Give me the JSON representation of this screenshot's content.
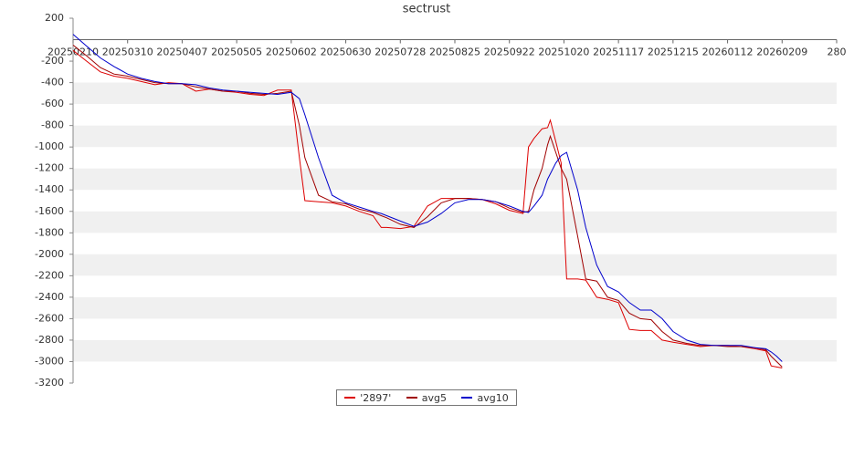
{
  "chart_data": {
    "type": "line",
    "title": "sectrust",
    "x": [
      0,
      5,
      10,
      15,
      20,
      25,
      30,
      35,
      40,
      45,
      50,
      55,
      60,
      65,
      70,
      75,
      80,
      83,
      85,
      90,
      95,
      100,
      105,
      110,
      113,
      115,
      120,
      125,
      130,
      135,
      140,
      145,
      150,
      155,
      160,
      165,
      167,
      169,
      172,
      174,
      175,
      177,
      179,
      181,
      185,
      188,
      192,
      196,
      200,
      204,
      208,
      212,
      216,
      220,
      225,
      230,
      235,
      240,
      245,
      250,
      254,
      256,
      258,
      260
    ],
    "series": [
      {
        "name": "'2897'",
        "color": "#dd0000",
        "values": [
          -100,
          -200,
          -300,
          -340,
          -360,
          -390,
          -420,
          -400,
          -410,
          -480,
          -460,
          -480,
          -490,
          -510,
          -520,
          -470,
          -470,
          -1100,
          -1500,
          -1510,
          -1520,
          -1550,
          -1600,
          -1640,
          -1750,
          -1750,
          -1760,
          -1740,
          -1550,
          -1480,
          -1480,
          -1480,
          -1490,
          -1530,
          -1590,
          -1620,
          -1000,
          -920,
          -830,
          -820,
          -750,
          -950,
          -1150,
          -2230,
          -2230,
          -2240,
          -2400,
          -2420,
          -2450,
          -2700,
          -2710,
          -2710,
          -2800,
          -2820,
          -2840,
          -2860,
          -2850,
          -2850,
          -2860,
          -2880,
          -2900,
          -3040,
          -3050,
          -3060
        ]
      },
      {
        "name": "avg5",
        "color": "#a00000",
        "values": [
          -50,
          -150,
          -260,
          -320,
          -340,
          -370,
          -400,
          -410,
          -410,
          -440,
          -460,
          -480,
          -480,
          -500,
          -510,
          -500,
          -480,
          -800,
          -1100,
          -1450,
          -1510,
          -1530,
          -1580,
          -1610,
          -1640,
          -1660,
          -1720,
          -1750,
          -1650,
          -1520,
          -1480,
          -1480,
          -1490,
          -1510,
          -1570,
          -1610,
          -1600,
          -1400,
          -1200,
          -980,
          -900,
          -1050,
          -1200,
          -1300,
          -1830,
          -2230,
          -2250,
          -2400,
          -2430,
          -2550,
          -2600,
          -2610,
          -2720,
          -2800,
          -2830,
          -2850,
          -2850,
          -2860,
          -2860,
          -2870,
          -2890,
          -2950,
          -3000,
          -3050
        ]
      },
      {
        "name": "avg10",
        "color": "#0000cc",
        "values": [
          50,
          -60,
          -170,
          -250,
          -320,
          -360,
          -390,
          -410,
          -410,
          -420,
          -450,
          -470,
          -480,
          -490,
          -500,
          -510,
          -490,
          -550,
          -700,
          -1100,
          -1450,
          -1520,
          -1560,
          -1600,
          -1620,
          -1640,
          -1690,
          -1740,
          -1700,
          -1620,
          -1520,
          -1490,
          -1490,
          -1510,
          -1550,
          -1600,
          -1610,
          -1550,
          -1450,
          -1300,
          -1250,
          -1150,
          -1080,
          -1050,
          -1400,
          -1750,
          -2100,
          -2300,
          -2350,
          -2450,
          -2520,
          -2520,
          -2600,
          -2720,
          -2800,
          -2840,
          -2850,
          -2850,
          -2850,
          -2870,
          -2880,
          -2910,
          -2950,
          -3000
        ]
      }
    ],
    "xlim": [
      0,
      280
    ],
    "xticks": [
      {
        "value": 0,
        "label": "20250210"
      },
      {
        "value": 20,
        "label": "20250310"
      },
      {
        "value": 40,
        "label": "20250407"
      },
      {
        "value": 60,
        "label": "20250505"
      },
      {
        "value": 80,
        "label": "20250602"
      },
      {
        "value": 100,
        "label": "20250630"
      },
      {
        "value": 120,
        "label": "20250728"
      },
      {
        "value": 140,
        "label": "20250825"
      },
      {
        "value": 160,
        "label": "20250922"
      },
      {
        "value": 180,
        "label": "20251020"
      },
      {
        "value": 200,
        "label": "20251117"
      },
      {
        "value": 220,
        "label": "20251215"
      },
      {
        "value": 240,
        "label": "20260112"
      },
      {
        "value": 260,
        "label": "20260209"
      },
      280
    ],
    "ylim": [
      -3200,
      200
    ],
    "yticks": [
      200,
      -200,
      -400,
      -600,
      -800,
      -1000,
      -1200,
      -1400,
      -1600,
      -1800,
      -2000,
      -2200,
      -2400,
      -2600,
      -2800,
      -3000,
      -3200
    ],
    "grid": true
  }
}
